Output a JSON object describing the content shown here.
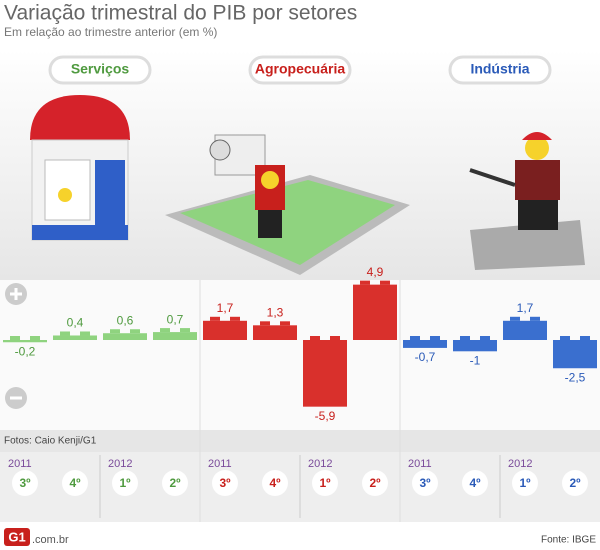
{
  "title": "Variação trimestral do PIB por setores",
  "subtitle": "Em relação ao trimestre anterior (em %)",
  "photo_credit": "Fotos: Caio Kenji/G1",
  "logo": "G1",
  "domain": ".com.br",
  "source": "Fonte: IBGE",
  "chart_data": [
    {
      "type": "bar",
      "title": "Serviços",
      "color": "#8fd37f",
      "label_color": "#4f9a3f",
      "categories": [
        "3º",
        "4º",
        "1º",
        "2º"
      ],
      "years": [
        "2011",
        "2012"
      ],
      "values": [
        -0.2,
        0.4,
        0.6,
        0.7
      ],
      "value_labels": [
        "-0,2",
        "0,4",
        "0,6",
        "0,7"
      ]
    },
    {
      "type": "bar",
      "title": "Agropecuária",
      "color": "#d9302c",
      "label_color": "#c8201c",
      "categories": [
        "3º",
        "4º",
        "1º",
        "2º"
      ],
      "years": [
        "2011",
        "2012"
      ],
      "values": [
        1.7,
        1.3,
        -5.9,
        4.9
      ],
      "value_labels": [
        "1,7",
        "1,3",
        "-5,9",
        "4,9"
      ]
    },
    {
      "type": "bar",
      "title": "Indústria",
      "color": "#3a6fcf",
      "label_color": "#2a5ab8",
      "categories": [
        "3º",
        "4º",
        "1º",
        "2º"
      ],
      "years": [
        "2011",
        "2012"
      ],
      "values": [
        -0.7,
        -1,
        1.7,
        -2.5
      ],
      "value_labels": [
        "-0,7",
        "-1",
        "1,7",
        "-2,5"
      ]
    }
  ]
}
